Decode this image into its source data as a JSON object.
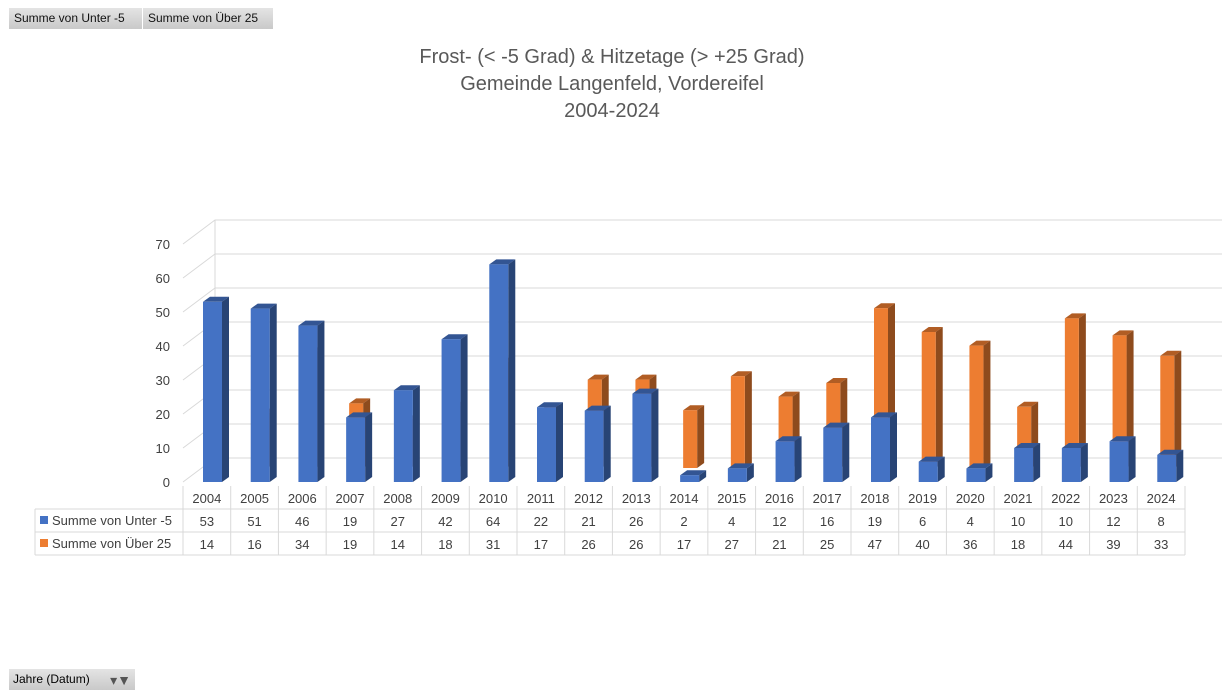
{
  "pivot_fields": {
    "unter": "Summe von  Unter  -5",
    "ueber": "Summe von  Über  25"
  },
  "filter_button": {
    "label": "Jahre (Datum)",
    "icon": "filter-dropdown-icon"
  },
  "chart_data": {
    "type": "bar",
    "variant": "3d-column",
    "title": [
      "Frost- (< -5 Grad) & Hitzetage (> +25 Grad)",
      "Gemeinde Langenfeld, Vordereifel",
      "2004-2024"
    ],
    "categories": [
      "2004",
      "2005",
      "2006",
      "2007",
      "2008",
      "2009",
      "2010",
      "2011",
      "2012",
      "2013",
      "2014",
      "2015",
      "2016",
      "2017",
      "2018",
      "2019",
      "2020",
      "2021",
      "2022",
      "2023",
      "2024"
    ],
    "series": [
      {
        "name": "Summe von Unter -5",
        "color": "#4472c4",
        "values": [
          53,
          51,
          46,
          19,
          27,
          42,
          64,
          22,
          21,
          26,
          2,
          4,
          12,
          16,
          19,
          6,
          4,
          10,
          10,
          12,
          8
        ]
      },
      {
        "name": "Summe von Über 25",
        "color": "#ed7d31",
        "values": [
          14,
          16,
          34,
          19,
          14,
          18,
          31,
          17,
          26,
          26,
          17,
          27,
          21,
          25,
          47,
          40,
          36,
          18,
          44,
          39,
          33
        ]
      }
    ],
    "yticks": [
      0,
      10,
      20,
      30,
      40,
      50,
      60,
      70
    ],
    "ylim": [
      0,
      70
    ],
    "grid": true,
    "legend": "data-table"
  }
}
